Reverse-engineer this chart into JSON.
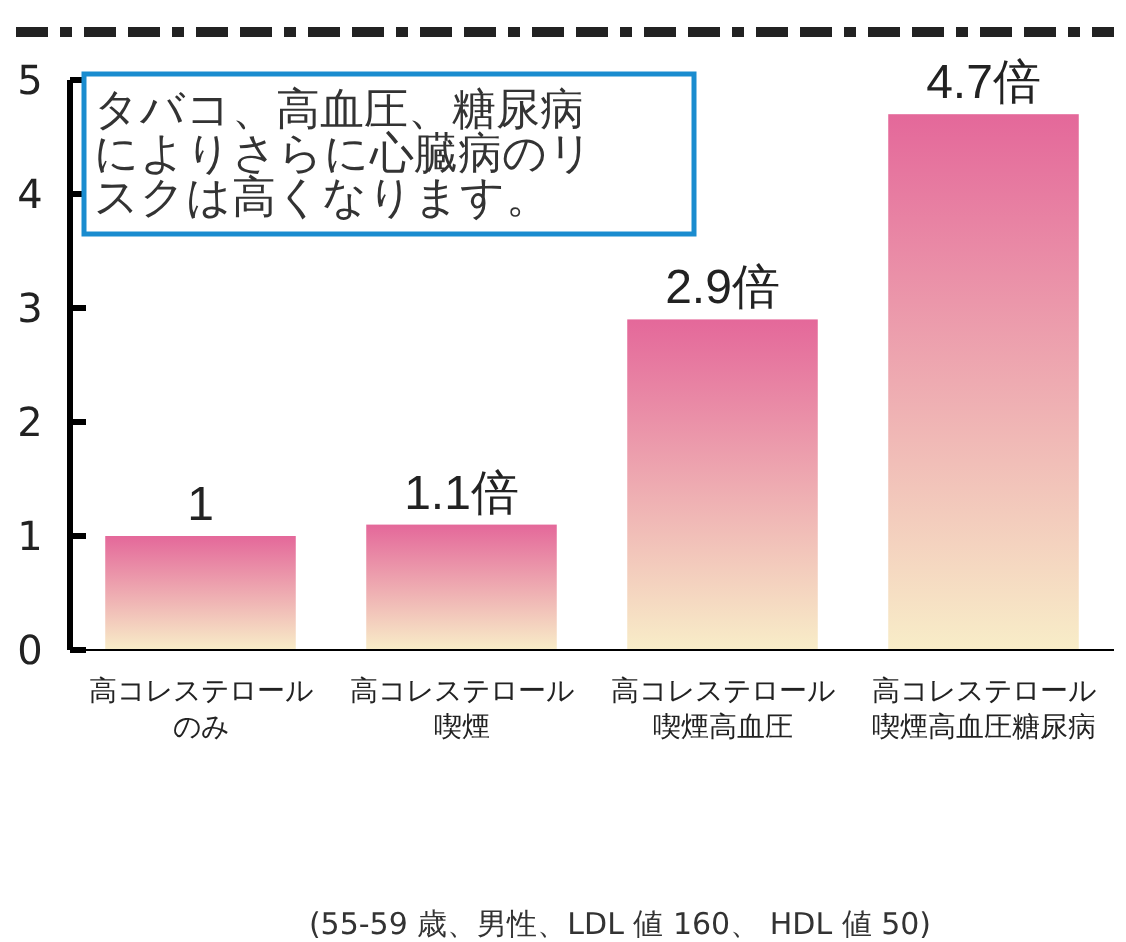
{
  "chart_data": {
    "type": "bar",
    "categories": [
      "高コレステロールのみ",
      "高コレステロール喫煙",
      "高コレステロール喫煙高血圧",
      "高コレステロール喫煙高血圧糖尿病"
    ],
    "series": [
      {
        "color": "#e4689a",
        "values": [
          1,
          1.1,
          2.9,
          4.7
        ],
        "value_labels": [
          "1",
          "1.1倍",
          "2.9倍",
          "4.7倍"
        ]
      }
    ],
    "ylim": [
      0,
      5
    ],
    "yticks": [
      0,
      1,
      2,
      3,
      4,
      5
    ],
    "grid": false,
    "annotations": [
      "タバコ、高血圧、糖尿病によりさらに心臓病のリスクは高くなります。",
      "(55-59 歳、男性、LDL 値 160、 HDL 値 50)"
    ]
  }
}
